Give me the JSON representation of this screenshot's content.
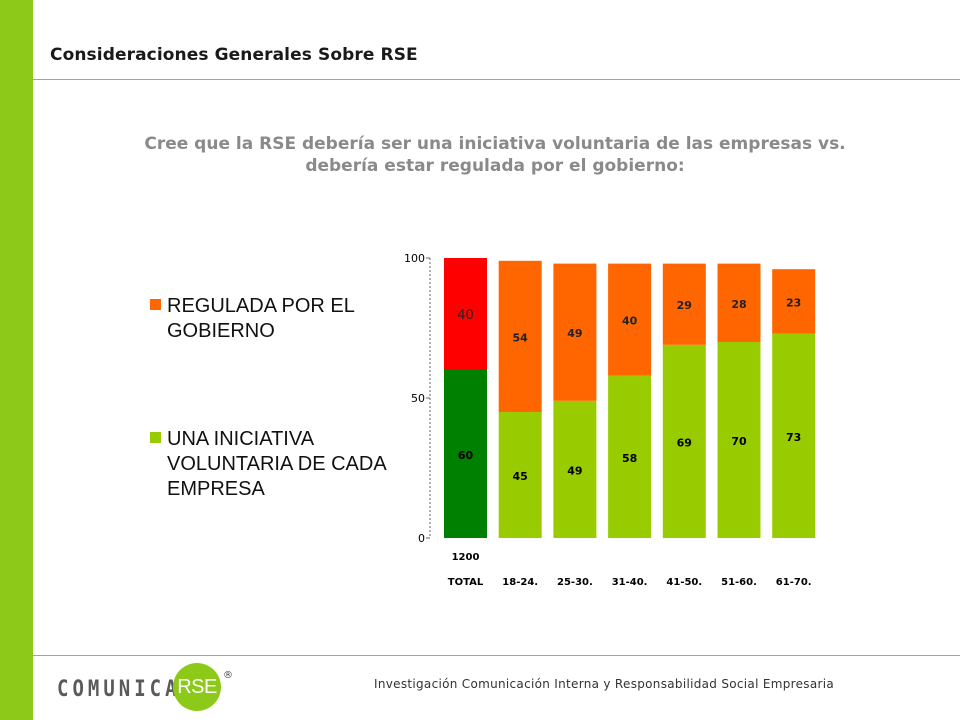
{
  "slide": {
    "section_title": "Consideraciones Generales Sobre RSE",
    "question_line1": "Cree que la RSE debería ser una iniciativa voluntaria de las empresas vs.",
    "question_line2": "debería estar regulada por el gobierno:",
    "footer_text": "Investigación Comunicación Interna y Responsabilidad Social Empresaria",
    "logo_word": "COMUNICA",
    "logo_circle": "RSE",
    "logo_reg": "®"
  },
  "colors": {
    "accent_green": "#8cc919",
    "regulada_orange": "#ff6600",
    "voluntaria_green": "#99cc00",
    "total_regulada_red": "#ff0000",
    "total_voluntaria_green": "#008000"
  },
  "legend": [
    {
      "label_line1": "REGULADA POR EL",
      "label_line2": "GOBIERNO",
      "color": "#ff6600"
    },
    {
      "label_line1": "UNA INICIATIVA",
      "label_line2": "VOLUNTARIA DE CADA",
      "label_line3": "EMPRESA",
      "color": "#99cc00"
    }
  ],
  "chart_data": {
    "type": "bar",
    "stacked": true,
    "categories": [
      "TOTAL",
      "18-24.",
      "25-30.",
      "31-40.",
      "41-50.",
      "51-60.",
      "61-70."
    ],
    "total_base_label": "1200",
    "series": [
      {
        "name": "UNA INICIATIVA VOLUNTARIA DE CADA EMPRESA",
        "values": [
          60,
          45,
          49,
          58,
          69,
          70,
          73
        ],
        "colors": [
          "#008000",
          "#99cc00",
          "#99cc00",
          "#99cc00",
          "#99cc00",
          "#99cc00",
          "#99cc00"
        ]
      },
      {
        "name": "REGULADA POR EL GOBIERNO",
        "values": [
          40,
          54,
          49,
          40,
          29,
          28,
          23
        ],
        "colors": [
          "#ff0000",
          "#ff6600",
          "#ff6600",
          "#ff6600",
          "#ff6600",
          "#ff6600",
          "#ff6600"
        ]
      }
    ],
    "yticks": [
      0,
      50,
      100
    ],
    "ylim": [
      0,
      100
    ],
    "legend_position": "left"
  }
}
